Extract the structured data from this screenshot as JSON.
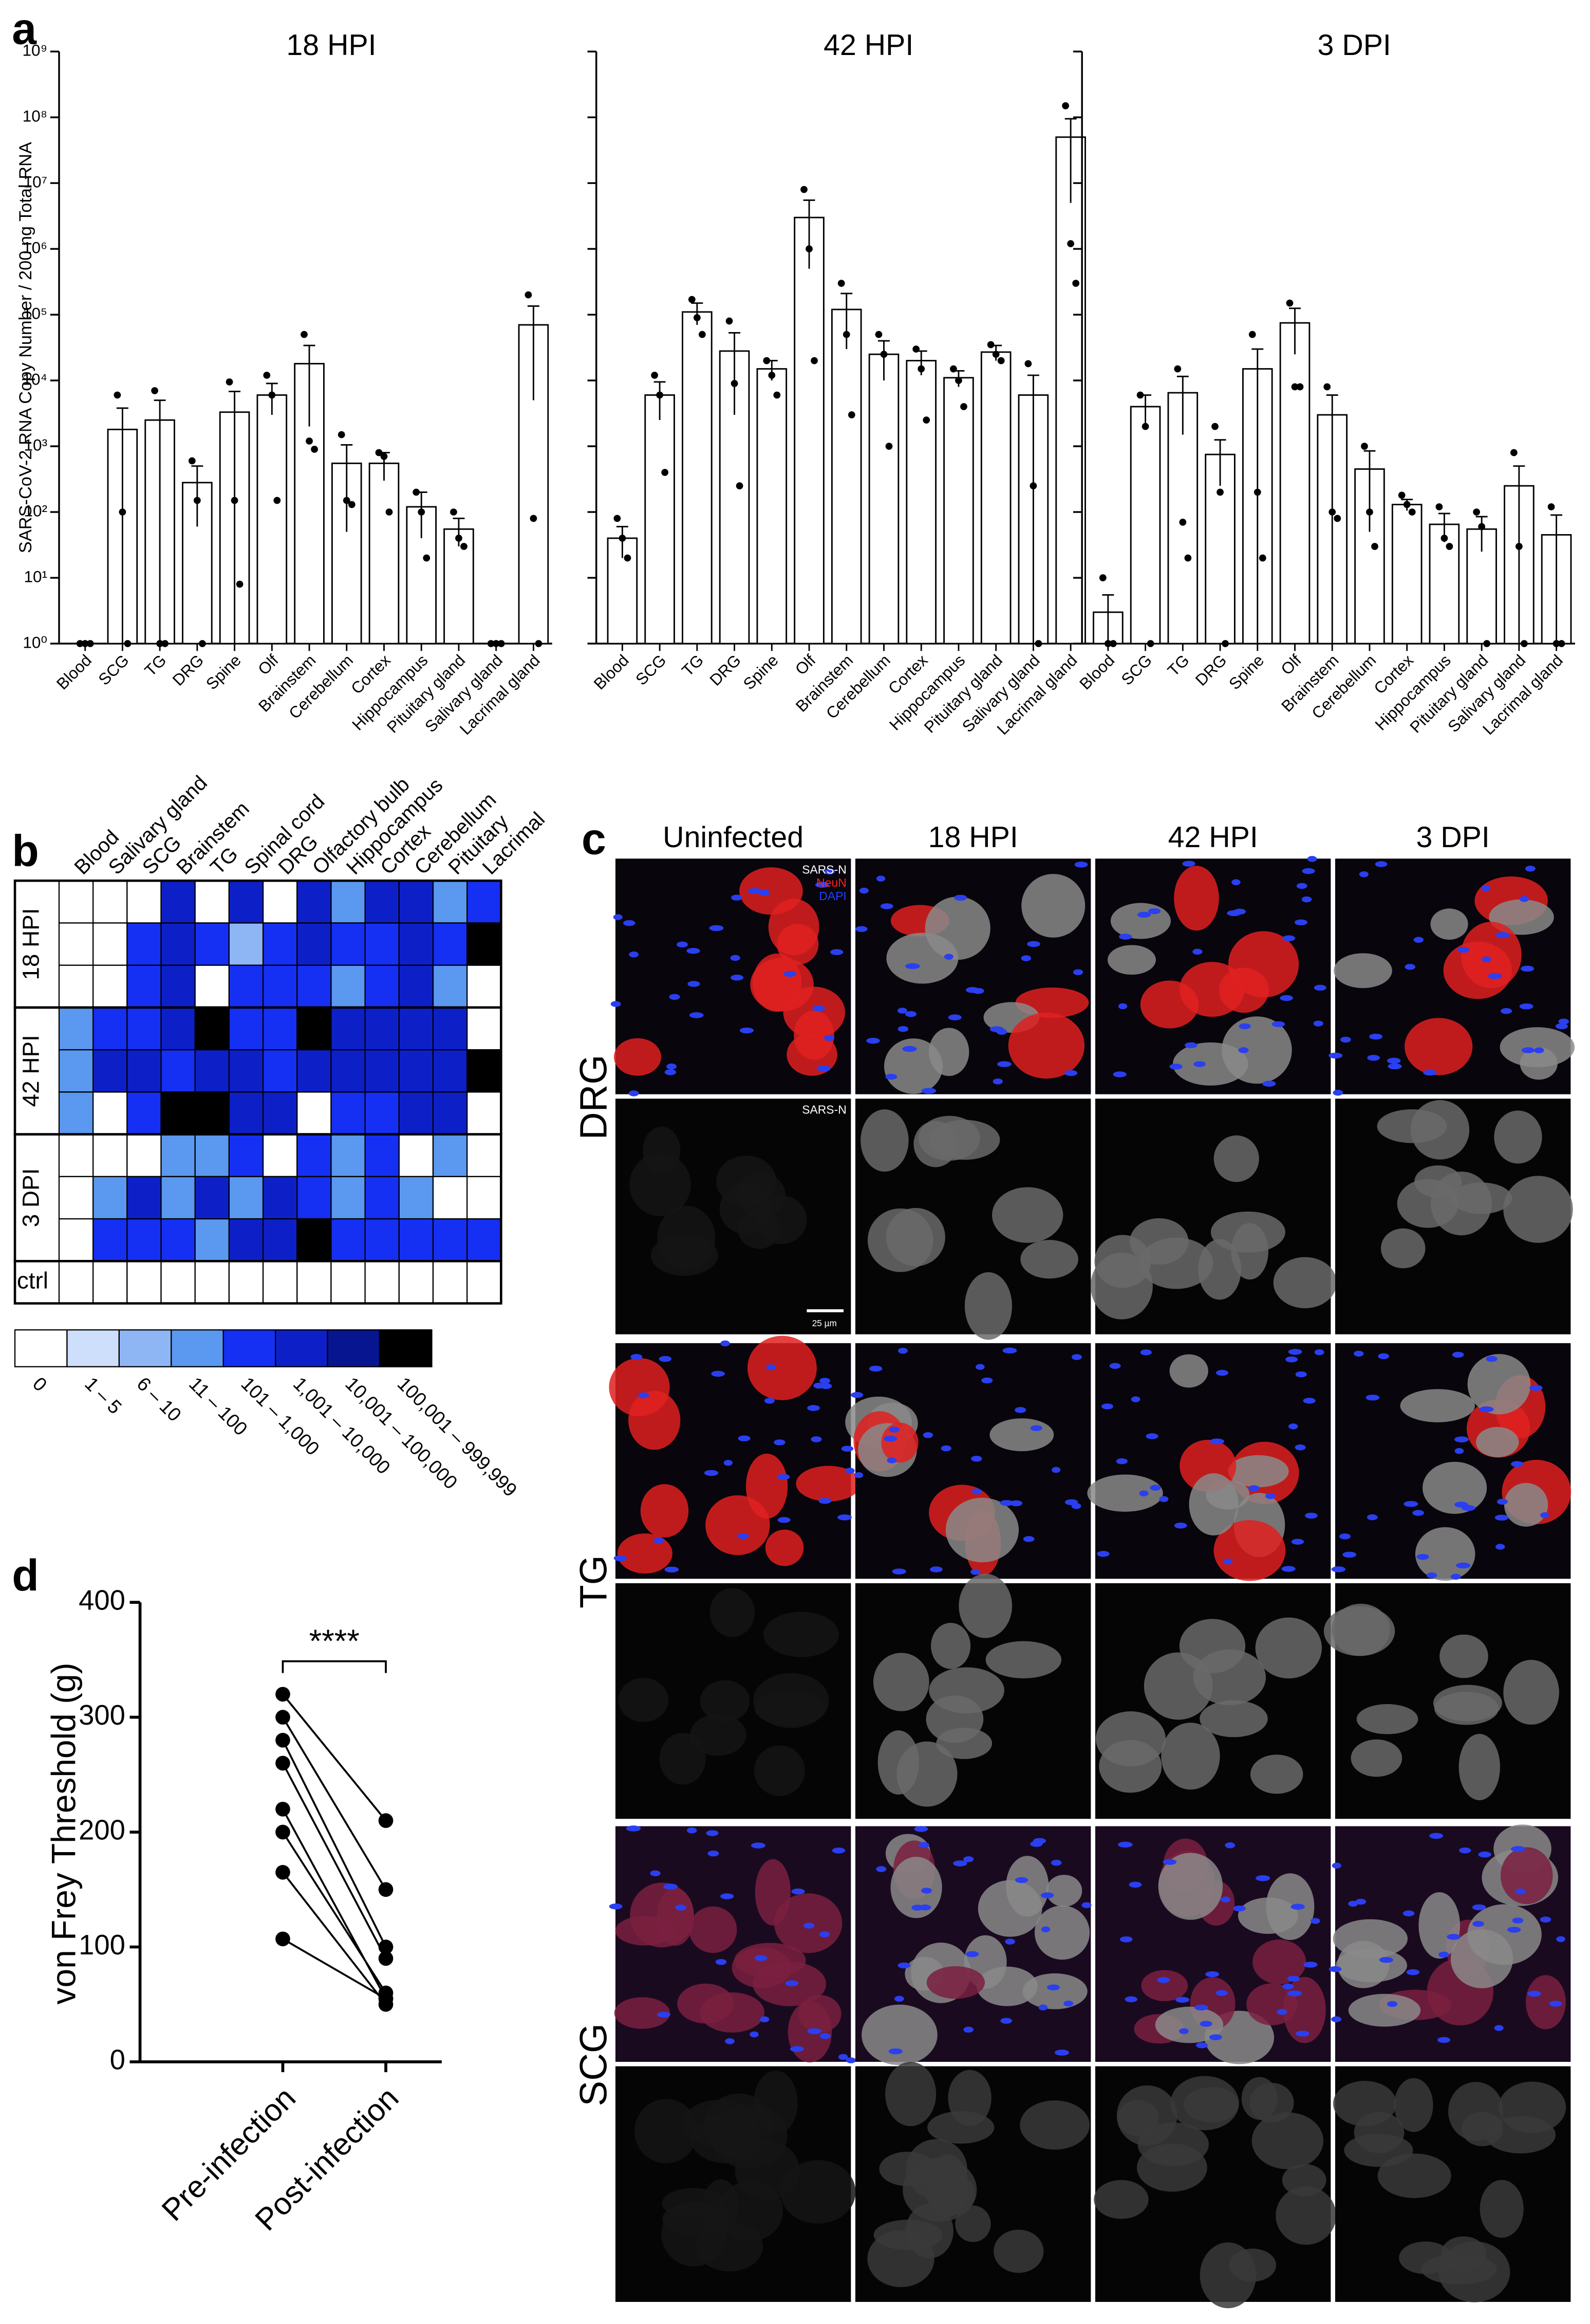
{
  "panel_labels": [
    "a",
    "b",
    "c",
    "d"
  ],
  "chart_data": [
    {
      "type": "bar",
      "title": "18 HPI",
      "ylabel": "SARS-CoV-2 RNA Copy Number / 200 ng Total RNA",
      "log_scale": true,
      "tick_labels": true,
      "categories": [
        "Blood",
        "SCG",
        "TG",
        "DRG",
        "Spine",
        "Olf",
        "Brainstem",
        "Cerebellum",
        "Cortex",
        "Hippocampus",
        "Pituitary gland",
        "Salivary gland",
        "Lacrimal gland"
      ],
      "values": [
        1,
        1800,
        2500,
        280,
        3300,
        6000,
        18000,
        550,
        550,
        120,
        55,
        1,
        70000
      ],
      "errors": [
        0,
        2000,
        2500,
        220,
        3500,
        3000,
        16000,
        500,
        250,
        80,
        25,
        0,
        65000
      ],
      "points": [
        [
          1,
          1,
          1
        ],
        [
          6000,
          100,
          1
        ],
        [
          7000,
          1,
          1
        ],
        [
          600,
          150,
          1
        ],
        [
          9500,
          150,
          8
        ],
        [
          12000,
          6000,
          150
        ],
        [
          50000,
          1200,
          900
        ],
        [
          1500,
          150,
          130
        ],
        [
          800,
          700,
          100
        ],
        [
          200,
          100,
          20
        ],
        [
          100,
          40,
          30
        ],
        [
          1,
          1,
          1
        ],
        [
          200000,
          80,
          1
        ]
      ],
      "color": "#ffffff",
      "ylim": [
        1,
        1000000000
      ],
      "yticks": [
        {
          "value": 1,
          "label": "10⁰"
        },
        {
          "value": 10,
          "label": "10¹"
        },
        {
          "value": 100,
          "label": "10²"
        },
        {
          "value": 1000,
          "label": "10³"
        },
        {
          "value": 10000,
          "label": "10⁴"
        },
        {
          "value": 100000,
          "label": "10⁵"
        },
        {
          "value": 1000000,
          "label": "10⁶"
        },
        {
          "value": 10000000,
          "label": "10⁷"
        },
        {
          "value": 100000000,
          "label": "10⁸"
        },
        {
          "value": 1000000000,
          "label": "10⁹"
        }
      ]
    },
    {
      "type": "bar",
      "title": "42 HPI",
      "log_scale": true,
      "tick_labels": false,
      "categories": [
        "Blood",
        "SCG",
        "TG",
        "DRG",
        "Spine",
        "Olf",
        "Brainstem",
        "Cerebellum",
        "Cortex",
        "Hippocampus",
        "Pituitary gland",
        "Salivary gland",
        "Lacrimal gland"
      ],
      "values": [
        40,
        6000,
        110000,
        28000,
        15000,
        3000000,
        120000,
        25000,
        20000,
        11000,
        27000,
        6000,
        50000000
      ],
      "errors": [
        20,
        3500,
        40000,
        25000,
        5000,
        2500000,
        90000,
        15000,
        8000,
        3000,
        7000,
        6000,
        45000000
      ],
      "points": [
        [
          80,
          40,
          20
        ],
        [
          12000,
          6000,
          400
        ],
        [
          170000,
          90000,
          50000
        ],
        [
          80000,
          9000,
          250
        ],
        [
          20000,
          12000,
          6000
        ],
        [
          8000000,
          1000000,
          20000
        ],
        [
          300000,
          50000,
          3000
        ],
        [
          50000,
          25000,
          1000
        ],
        [
          30000,
          15000,
          2500
        ],
        [
          15000,
          10000,
          4000
        ],
        [
          35000,
          25000,
          20000
        ],
        [
          18000,
          250,
          1
        ],
        [
          150000000,
          1200000,
          300000
        ]
      ],
      "color": "#ffffff",
      "ylim": [
        1,
        1000000000
      ],
      "yticks": [
        1,
        10,
        100,
        1000,
        10000,
        100000,
        1000000,
        10000000,
        100000000,
        1000000000
      ]
    },
    {
      "type": "bar",
      "title": "3 DPI",
      "log_scale": true,
      "tick_labels": false,
      "categories": [
        "Blood",
        "SCG",
        "TG",
        "DRG",
        "Spine",
        "Olf",
        "Brainstem",
        "Cerebellum",
        "Cortex",
        "Hippocampus",
        "Pituitary gland",
        "Salivary gland",
        "Lacrimal gland"
      ],
      "values": [
        3,
        4000,
        6500,
        750,
        15000,
        75000,
        3000,
        450,
        130,
        65,
        55,
        250,
        45
      ],
      "errors": [
        2.5,
        2000,
        5000,
        500,
        15000,
        50000,
        3000,
        400,
        25,
        30,
        30,
        250,
        45
      ],
      "points": [
        [
          10,
          1,
          1
        ],
        [
          6000,
          2000,
          1
        ],
        [
          15000,
          70,
          20
        ],
        [
          2000,
          200,
          1
        ],
        [
          50000,
          200,
          20
        ],
        [
          150000,
          8000,
          8000
        ],
        [
          8000,
          100,
          80
        ],
        [
          1000,
          100,
          30
        ],
        [
          180,
          130,
          100
        ],
        [
          120,
          40,
          30
        ],
        [
          100,
          60,
          1
        ],
        [
          800,
          30,
          1
        ],
        [
          120,
          1,
          1
        ]
      ],
      "color": "#ffffff",
      "ylim": [
        1,
        1000000000
      ],
      "yticks": [
        1,
        10,
        100,
        1000,
        10000,
        100000,
        1000000,
        10000000,
        100000000,
        1000000000
      ]
    },
    {
      "type": "heatmap",
      "columns": [
        "Blood",
        "Salivary gland",
        "SCG",
        "Brainstem",
        "TG",
        "Spinal cord",
        "DRG",
        "Olfactory bulb",
        "Hippocampus",
        "Cortex",
        "Cerebellum",
        "Pituitary",
        "Lacrimal"
      ],
      "groups": [
        {
          "label": "18 HPI",
          "rows": [
            [
              0,
              0,
              0,
              5,
              0,
              5,
              0,
              5,
              3,
              5,
              5,
              3,
              4
            ],
            [
              0,
              0,
              4,
              5,
              4,
              2,
              4,
              5,
              4,
              4,
              5,
              4,
              7
            ],
            [
              0,
              0,
              4,
              5,
              0,
              4,
              4,
              4,
              3,
              4,
              5,
              3,
              0
            ]
          ]
        },
        {
          "label": "42 HPI",
          "rows": [
            [
              3,
              4,
              4,
              5,
              7,
              4,
              4,
              7,
              5,
              5,
              5,
              5,
              0
            ],
            [
              3,
              5,
              5,
              4,
              5,
              5,
              4,
              5,
              5,
              5,
              5,
              5,
              7
            ],
            [
              3,
              0,
              4,
              7,
              7,
              5,
              5,
              0,
              4,
              4,
              5,
              5,
              0
            ]
          ]
        },
        {
          "label": "3 DPI",
          "rows": [
            [
              0,
              0,
              0,
              3,
              3,
              4,
              0,
              4,
              3,
              4,
              0,
              3,
              0
            ],
            [
              0,
              3,
              5,
              3,
              5,
              3,
              5,
              4,
              3,
              4,
              3,
              0,
              0
            ],
            [
              0,
              4,
              4,
              4,
              3,
              5,
              5,
              7,
              4,
              4,
              4,
              4,
              4
            ]
          ]
        },
        {
          "label": "ctrl",
          "rows": [
            [
              0,
              0,
              0,
              0,
              0,
              0,
              0,
              0,
              0,
              0,
              0,
              0,
              0
            ]
          ]
        }
      ],
      "levels": [
        {
          "label": "0",
          "color": "#ffffff"
        },
        {
          "label": "1 – 5",
          "color": "#cddffa"
        },
        {
          "label": "6 – 10",
          "color": "#8fb6f4"
        },
        {
          "label": "11 – 100",
          "color": "#5b98ef"
        },
        {
          "label": "101 – 1,000",
          "color": "#1530f2"
        },
        {
          "label": "1,001 – 10,000",
          "color": "#0d20c8"
        },
        {
          "label": "10,001 – 100,000",
          "color": "#071690"
        },
        {
          "label": "100,001 – 999,999",
          "color": "#000000"
        }
      ]
    },
    {
      "type": "paired",
      "ylabel": "von Frey Threshold (g)",
      "annotation": "****",
      "categories": [
        "Pre-infection",
        "Post-infection"
      ],
      "values": [
        [
          320,
          210
        ],
        [
          300,
          150
        ],
        [
          280,
          100
        ],
        [
          260,
          90
        ],
        [
          220,
          55
        ],
        [
          200,
          60
        ],
        [
          165,
          50
        ],
        [
          107,
          55
        ]
      ],
      "color": "#000000",
      "ylim": [
        0,
        400
      ],
      "yticks": [
        0,
        100,
        200,
        300,
        400
      ]
    }
  ],
  "image_grid": {
    "columns": [
      "Uninfected",
      "18 HPI",
      "42 HPI",
      "3 DPI"
    ],
    "rows": [
      "DRG",
      "TG",
      "SCG"
    ],
    "channels": [
      {
        "name": "SARS-N",
        "color": "#ffffff"
      },
      {
        "name": "NeuN",
        "color": "#ff2020"
      },
      {
        "name": "DAPI",
        "color": "#2040ff"
      }
    ],
    "gray_label": "SARS-N",
    "scale_bar": "25 µm"
  }
}
